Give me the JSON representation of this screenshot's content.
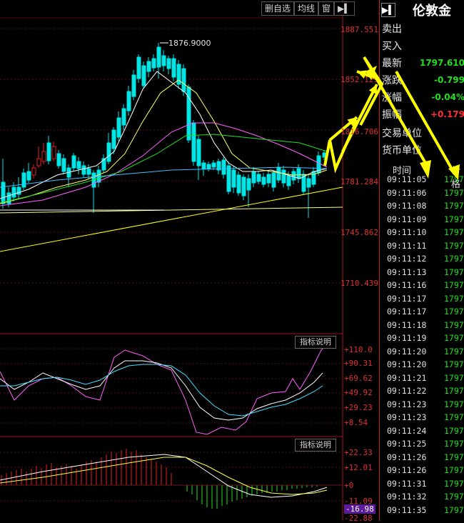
{
  "toolbar": {
    "delete_label": "删自选",
    "ma_label": "均线",
    "window_label": "窗"
  },
  "price_axis": [
    "1887.551",
    "1852.129",
    "1816.706",
    "1781.284",
    "1745.862",
    "1710.439"
  ],
  "peak_label": "1876.9000",
  "indicator_button": "指标说明",
  "kdj_axis": [
    "+110.0",
    "+90.31",
    "+69.62",
    "+49.92",
    "+29.23",
    "+8.54"
  ],
  "macd_axis": [
    "+22.33",
    "+12.01",
    "+0",
    "-11.09",
    "-16.98",
    "-22.88"
  ],
  "colors": {
    "up": "#e02020",
    "down": "#00e5e5",
    "accent_arrow": "#ffff00",
    "green": "#20e020"
  },
  "quote": {
    "title": "伦敦金",
    "ask_label": "卖出",
    "bid_label": "买入",
    "last_label": "最新",
    "last_value": "1797.610",
    "change_label": "涨跌",
    "change_value": "-0.799",
    "pct_label": "涨幅",
    "pct_value": "-0.04%",
    "amp_label": "振幅",
    "amp_value": "+0.179",
    "unit_label": "交易单位",
    "currency_label": "货币单位"
  },
  "ticks_header": {
    "time": "时间",
    "price": "价格"
  },
  "ticks": [
    {
      "time": "09:11:05",
      "price": "1797."
    },
    {
      "time": "09:11:06",
      "price": "1797."
    },
    {
      "time": "09:11:08",
      "price": "1797."
    },
    {
      "time": "09:11:09",
      "price": "1797."
    },
    {
      "time": "09:11:10",
      "price": "1797."
    },
    {
      "time": "09:11:11",
      "price": "1797."
    },
    {
      "time": "09:11:12",
      "price": "1797."
    },
    {
      "time": "09:11:13",
      "price": "1797."
    },
    {
      "time": "09:11:16",
      "price": "1797."
    },
    {
      "time": "09:11:17",
      "price": "1797."
    },
    {
      "time": "09:11:17",
      "price": "1797."
    },
    {
      "time": "09:11:18",
      "price": "1797."
    },
    {
      "time": "09:11:19",
      "price": "1797."
    },
    {
      "time": "09:11:20",
      "price": "1797."
    },
    {
      "time": "09:11:20",
      "price": "1797."
    },
    {
      "time": "09:11:21",
      "price": "1797."
    },
    {
      "time": "09:11:22",
      "price": "1797."
    },
    {
      "time": "09:11:23",
      "price": "1797."
    },
    {
      "time": "09:11:23",
      "price": "1797."
    },
    {
      "time": "09:11:24",
      "price": "1797."
    },
    {
      "time": "09:11:25",
      "price": "1797."
    },
    {
      "time": "09:11:26",
      "price": "1797."
    },
    {
      "time": "09:11:26",
      "price": "1797."
    },
    {
      "time": "09:11:31",
      "price": "1797."
    },
    {
      "time": "09:11:32",
      "price": "1797."
    },
    {
      "time": "09:11:35",
      "price": "1797."
    }
  ]
}
